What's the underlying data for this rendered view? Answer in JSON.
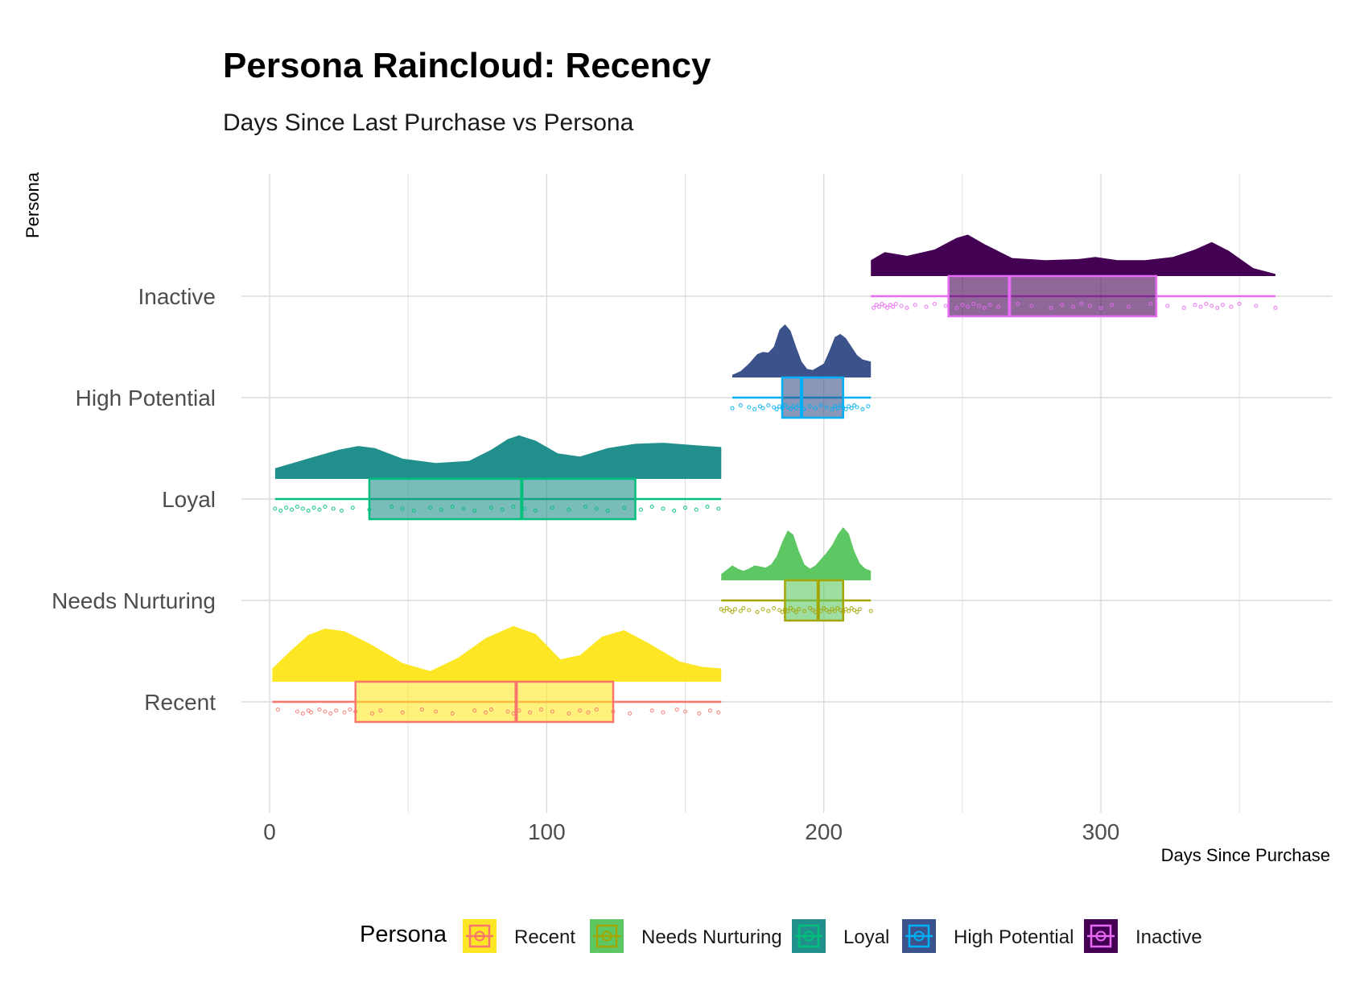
{
  "chart_data": {
    "type": "raincloud",
    "title": "Persona Raincloud: Recency",
    "subtitle": "Days Since Last Purchase vs Persona",
    "xlabel": "Days Since Purchase",
    "ylabel": "Persona",
    "xlim": [
      -8,
      383
    ],
    "x_ticks": [
      0,
      100,
      200,
      300
    ],
    "x_tick_labels": [
      "0",
      "100",
      "200",
      "300"
    ],
    "grid": true,
    "legend": {
      "title": "Persona",
      "position": "bottom"
    },
    "categories": [
      "Recent",
      "Needs Nurturing",
      "Loyal",
      "High Potential",
      "Inactive"
    ],
    "series": [
      {
        "name": "Recent",
        "fill": "#FDE725",
        "line": "#F8766D",
        "min": 1,
        "q1": 31,
        "median": 89,
        "q3": 124,
        "max": 163,
        "density": [
          [
            1,
            0.25
          ],
          [
            8,
            0.6
          ],
          [
            14,
            0.88
          ],
          [
            20,
            1.0
          ],
          [
            27,
            0.95
          ],
          [
            36,
            0.72
          ],
          [
            48,
            0.35
          ],
          [
            58,
            0.2
          ],
          [
            68,
            0.45
          ],
          [
            78,
            0.82
          ],
          [
            88,
            1.05
          ],
          [
            96,
            0.9
          ],
          [
            105,
            0.42
          ],
          [
            112,
            0.5
          ],
          [
            120,
            0.85
          ],
          [
            128,
            0.97
          ],
          [
            137,
            0.72
          ],
          [
            148,
            0.38
          ],
          [
            156,
            0.28
          ],
          [
            163,
            0.25
          ]
        ],
        "points": [
          3,
          10,
          12,
          14,
          15,
          18,
          20,
          22,
          24,
          27,
          29,
          31,
          37,
          40,
          48,
          55,
          60,
          66,
          74,
          78,
          80,
          86,
          88,
          90,
          94,
          98,
          102,
          108,
          112,
          115,
          118,
          124,
          130,
          138,
          142,
          147,
          150,
          155,
          159,
          162
        ]
      },
      {
        "name": "Needs Nurturing",
        "fill": "#5DC863",
        "line": "#A3A500",
        "min": 163,
        "q1": 186,
        "median": 198,
        "q3": 207,
        "max": 217,
        "density": [
          [
            163,
            0.12
          ],
          [
            165,
            0.2
          ],
          [
            167,
            0.28
          ],
          [
            169,
            0.22
          ],
          [
            171,
            0.18
          ],
          [
            173,
            0.22
          ],
          [
            175,
            0.28
          ],
          [
            177,
            0.26
          ],
          [
            179,
            0.24
          ],
          [
            181,
            0.3
          ],
          [
            183,
            0.45
          ],
          [
            185,
            0.72
          ],
          [
            187,
            0.94
          ],
          [
            189,
            0.86
          ],
          [
            191,
            0.55
          ],
          [
            193,
            0.3
          ],
          [
            195,
            0.22
          ],
          [
            197,
            0.28
          ],
          [
            199,
            0.4
          ],
          [
            201,
            0.52
          ],
          [
            203,
            0.66
          ],
          [
            205,
            0.86
          ],
          [
            207,
            1.0
          ],
          [
            209,
            0.88
          ],
          [
            211,
            0.55
          ],
          [
            213,
            0.32
          ],
          [
            215,
            0.22
          ],
          [
            217,
            0.18
          ]
        ],
        "points": [
          163,
          164,
          165,
          166,
          167,
          168,
          170,
          171,
          173,
          176,
          178,
          180,
          182,
          184,
          185,
          186,
          187,
          188,
          189,
          190,
          191,
          193,
          195,
          196,
          197,
          198,
          199,
          200,
          201,
          202,
          203,
          204,
          205,
          206,
          207,
          208,
          209,
          210,
          211,
          212,
          213,
          217
        ]
      },
      {
        "name": "Loyal",
        "fill": "#21908C",
        "line": "#00BF7D",
        "min": 2,
        "q1": 36,
        "median": 91,
        "q3": 132,
        "max": 163,
        "density": [
          [
            2,
            0.2
          ],
          [
            15,
            0.4
          ],
          [
            25,
            0.55
          ],
          [
            32,
            0.62
          ],
          [
            38,
            0.58
          ],
          [
            48,
            0.38
          ],
          [
            60,
            0.3
          ],
          [
            72,
            0.34
          ],
          [
            80,
            0.55
          ],
          [
            86,
            0.75
          ],
          [
            90,
            0.82
          ],
          [
            96,
            0.72
          ],
          [
            104,
            0.48
          ],
          [
            112,
            0.42
          ],
          [
            122,
            0.58
          ],
          [
            132,
            0.66
          ],
          [
            142,
            0.68
          ],
          [
            152,
            0.64
          ],
          [
            163,
            0.6
          ]
        ],
        "points": [
          2,
          4,
          6,
          8,
          10,
          12,
          14,
          16,
          18,
          20,
          23,
          26,
          30,
          36,
          44,
          48,
          52,
          58,
          62,
          66,
          70,
          74,
          80,
          84,
          88,
          92,
          96,
          102,
          108,
          114,
          118,
          122,
          128,
          134,
          138,
          142,
          146,
          150,
          154,
          158,
          162
        ]
      },
      {
        "name": "High Potential",
        "fill": "#3B528B",
        "line": "#00B0F6",
        "min": 167,
        "q1": 185,
        "median": 192,
        "q3": 207,
        "max": 217,
        "density": [
          [
            167,
            0.05
          ],
          [
            170,
            0.12
          ],
          [
            173,
            0.26
          ],
          [
            176,
            0.44
          ],
          [
            178,
            0.48
          ],
          [
            180,
            0.47
          ],
          [
            182,
            0.58
          ],
          [
            184,
            0.9
          ],
          [
            186,
            1.0
          ],
          [
            188,
            0.88
          ],
          [
            190,
            0.58
          ],
          [
            192,
            0.3
          ],
          [
            194,
            0.16
          ],
          [
            196,
            0.14
          ],
          [
            198,
            0.2
          ],
          [
            200,
            0.26
          ],
          [
            202,
            0.5
          ],
          [
            204,
            0.76
          ],
          [
            206,
            0.82
          ],
          [
            208,
            0.74
          ],
          [
            210,
            0.58
          ],
          [
            212,
            0.42
          ],
          [
            214,
            0.34
          ],
          [
            217,
            0.3
          ]
        ],
        "points": [
          167,
          170,
          173,
          175,
          177,
          178,
          180,
          182,
          183,
          184,
          185,
          186,
          187,
          188,
          189,
          190,
          191,
          192,
          193,
          195,
          197,
          199,
          201,
          203,
          204,
          205,
          206,
          207,
          208,
          209,
          210,
          211,
          212,
          214,
          216
        ]
      },
      {
        "name": "Inactive",
        "fill": "#440154",
        "line": "#E76BF3",
        "min": 217,
        "q1": 245,
        "median": 267,
        "q3": 320,
        "max": 363,
        "density": [
          [
            217,
            0.3
          ],
          [
            222,
            0.45
          ],
          [
            230,
            0.38
          ],
          [
            240,
            0.5
          ],
          [
            248,
            0.72
          ],
          [
            252,
            0.78
          ],
          [
            258,
            0.6
          ],
          [
            268,
            0.34
          ],
          [
            280,
            0.3
          ],
          [
            292,
            0.32
          ],
          [
            298,
            0.36
          ],
          [
            306,
            0.3
          ],
          [
            316,
            0.3
          ],
          [
            326,
            0.36
          ],
          [
            334,
            0.5
          ],
          [
            340,
            0.64
          ],
          [
            346,
            0.48
          ],
          [
            355,
            0.15
          ],
          [
            363,
            0.04
          ]
        ],
        "points": [
          218,
          219,
          220,
          221,
          222,
          223,
          224,
          225,
          226,
          228,
          230,
          233,
          237,
          240,
          244,
          248,
          250,
          252,
          254,
          256,
          258,
          260,
          263,
          270,
          275,
          282,
          286,
          290,
          293,
          296,
          300,
          304,
          310,
          318,
          324,
          330,
          334,
          336,
          338,
          340,
          342,
          344,
          347,
          350,
          356,
          363
        ]
      }
    ]
  }
}
